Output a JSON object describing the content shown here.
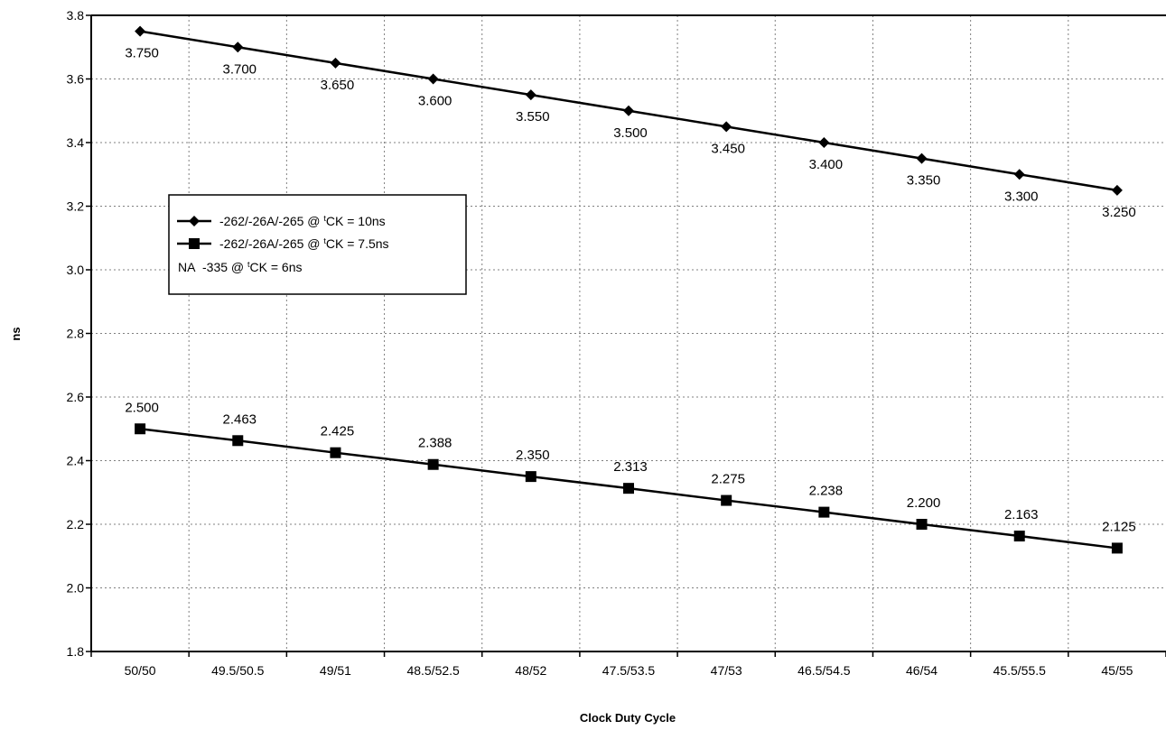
{
  "chart_data": {
    "type": "line",
    "xlabel": "Clock Duty Cycle",
    "ylabel": "ns",
    "categories": [
      "50/50",
      "49.5/50.5",
      "49/51",
      "48.5/52.5",
      "48/52",
      "47.5/53.5",
      "47/53",
      "46.5/54.5",
      "46/54",
      "45.5/55.5",
      "45/55"
    ],
    "ylim": [
      1.8,
      3.8
    ],
    "yticks": [
      "1.8",
      "2.0",
      "2.2",
      "2.4",
      "2.6",
      "2.8",
      "3.0",
      "3.2",
      "3.4",
      "3.6",
      "3.8"
    ],
    "grid": true,
    "legend_position": "upper-left",
    "series": [
      {
        "name_parts": [
          "-262/-26A/-265 @ ",
          "t",
          "CK = 10ns"
        ],
        "marker": "diamond",
        "values": [
          3.75,
          3.7,
          3.65,
          3.6,
          3.55,
          3.5,
          3.45,
          3.4,
          3.35,
          3.3,
          3.25
        ],
        "labels": [
          "3.750",
          "3.700",
          "3.650",
          "3.600",
          "3.550",
          "3.500",
          "3.450",
          "3.400",
          "3.350",
          "3.300",
          "3.250"
        ]
      },
      {
        "name_parts": [
          "-262/-26A/-265 @ ",
          "t",
          "CK = 7.5ns"
        ],
        "marker": "square",
        "values": [
          2.5,
          2.463,
          2.425,
          2.388,
          2.35,
          2.313,
          2.275,
          2.238,
          2.2,
          2.163,
          2.125
        ],
        "labels": [
          "2.500",
          "2.463",
          "2.425",
          "2.388",
          "2.350",
          "2.313",
          "2.275",
          "2.238",
          "2.200",
          "2.163",
          "2.125"
        ]
      }
    ],
    "legend_extra": {
      "marker_text": "NA",
      "name_parts": [
        "-335 @ ",
        "t",
        "CK = 6ns"
      ]
    }
  }
}
